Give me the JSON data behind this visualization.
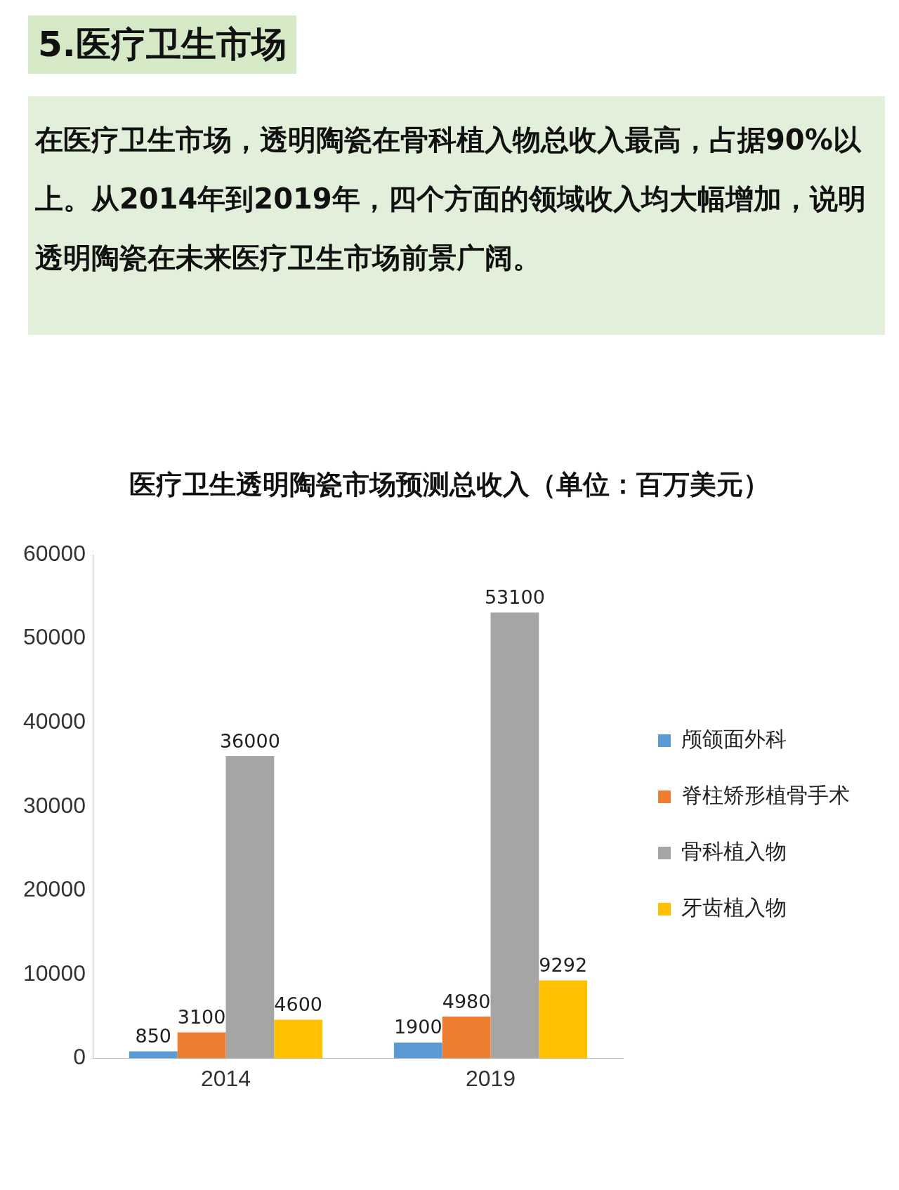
{
  "chart_data": {
    "type": "bar",
    "title": "医疗卫生透明陶瓷市场预测总收入（单位：百万美元）",
    "annotations": [
      "5.医疗卫生市场",
      "在医疗卫生市场，透明陶瓷在骨科植入物总收入最高，占据90%以上。从2014年到2019年，四个方面的领域收入均大幅增加，说明透明陶瓷在未来医疗卫生市场前景广阔。"
    ],
    "categories": [
      "2014",
      "2019"
    ],
    "series": [
      {
        "name": "颅颌面外科",
        "color": "#5b9bd5",
        "values": [
          850,
          1900
        ]
      },
      {
        "name": "脊柱矫形植骨手术",
        "color": "#ed7d31",
        "values": [
          3100,
          4980
        ]
      },
      {
        "name": "骨科植入物",
        "color": "#a5a5a5",
        "values": [
          36000,
          53100
        ]
      },
      {
        "name": "牙齿植入物",
        "color": "#ffc000",
        "values": [
          4600,
          9292
        ]
      }
    ],
    "ylim": [
      0,
      60000
    ],
    "yticks": [
      0,
      10000,
      20000,
      30000,
      40000,
      50000,
      60000
    ],
    "grid": false,
    "legend": "right",
    "data_labels": true
  }
}
